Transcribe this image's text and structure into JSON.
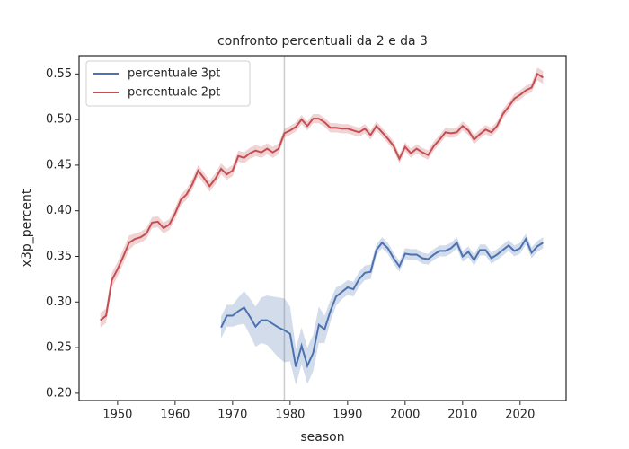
{
  "chart_data": {
    "type": "line",
    "title": "confronto percentuali da 2 e da 3",
    "xlabel": "season",
    "ylabel": "x3p_percent",
    "x": [
      1947,
      1948,
      1949,
      1950,
      1951,
      1952,
      1953,
      1954,
      1955,
      1956,
      1957,
      1958,
      1959,
      1960,
      1961,
      1962,
      1963,
      1964,
      1965,
      1966,
      1967,
      1968,
      1969,
      1970,
      1971,
      1972,
      1973,
      1974,
      1975,
      1976,
      1977,
      1978,
      1979,
      1980,
      1981,
      1982,
      1983,
      1984,
      1985,
      1986,
      1987,
      1988,
      1989,
      1990,
      1991,
      1992,
      1993,
      1994,
      1995,
      1996,
      1997,
      1998,
      1999,
      2000,
      2001,
      2002,
      2003,
      2004,
      2005,
      2006,
      2007,
      2008,
      2009,
      2010,
      2011,
      2012,
      2013,
      2014,
      2015,
      2016,
      2017,
      2018,
      2019,
      2020,
      2021,
      2022,
      2023,
      2024
    ],
    "series": [
      {
        "name": "percentuale 3pt",
        "color": "#4c72b0",
        "values": [
          null,
          null,
          null,
          null,
          null,
          null,
          null,
          null,
          null,
          null,
          null,
          null,
          null,
          null,
          null,
          null,
          null,
          null,
          null,
          null,
          null,
          0.272,
          0.285,
          0.285,
          0.29,
          0.294,
          0.284,
          0.273,
          0.28,
          0.28,
          0.276,
          0.272,
          0.269,
          0.265,
          0.229,
          0.252,
          0.23,
          0.244,
          0.275,
          0.27,
          0.29,
          0.306,
          0.311,
          0.316,
          0.314,
          0.325,
          0.332,
          0.333,
          0.357,
          0.365,
          0.359,
          0.348,
          0.339,
          0.353,
          0.352,
          0.352,
          0.348,
          0.347,
          0.352,
          0.356,
          0.356,
          0.359,
          0.365,
          0.35,
          0.355,
          0.346,
          0.357,
          0.357,
          0.348,
          0.352,
          0.357,
          0.362,
          0.356,
          0.359,
          0.369,
          0.354,
          0.361,
          0.365
        ],
        "ci": [
          null,
          null,
          null,
          null,
          null,
          null,
          null,
          null,
          null,
          null,
          null,
          null,
          null,
          null,
          null,
          null,
          null,
          null,
          null,
          null,
          null,
          0.012,
          0.012,
          0.012,
          0.015,
          0.018,
          0.02,
          0.022,
          0.025,
          0.027,
          0.03,
          0.033,
          0.035,
          0.03,
          0.02,
          0.02,
          0.02,
          0.02,
          0.02,
          0.015,
          0.012,
          0.01,
          0.008,
          0.008,
          0.008,
          0.008,
          0.008,
          0.008,
          0.006,
          0.006,
          0.006,
          0.006,
          0.006,
          0.006,
          0.006,
          0.006,
          0.006,
          0.006,
          0.006,
          0.006,
          0.006,
          0.006,
          0.006,
          0.006,
          0.006,
          0.006,
          0.006,
          0.006,
          0.006,
          0.006,
          0.006,
          0.006,
          0.006,
          0.006,
          0.006,
          0.006,
          0.006,
          0.006
        ]
      },
      {
        "name": "percentuale 2pt",
        "color": "#c44e52",
        "values": [
          0.28,
          0.285,
          0.324,
          0.336,
          0.35,
          0.365,
          0.369,
          0.371,
          0.375,
          0.387,
          0.388,
          0.381,
          0.385,
          0.397,
          0.412,
          0.418,
          0.429,
          0.444,
          0.436,
          0.427,
          0.435,
          0.446,
          0.44,
          0.444,
          0.46,
          0.458,
          0.463,
          0.466,
          0.464,
          0.468,
          0.464,
          0.468,
          0.485,
          0.488,
          0.492,
          0.5,
          0.493,
          0.501,
          0.501,
          0.497,
          0.491,
          0.491,
          0.49,
          0.49,
          0.488,
          0.486,
          0.49,
          0.483,
          0.493,
          0.486,
          0.479,
          0.471,
          0.457,
          0.47,
          0.463,
          0.468,
          0.464,
          0.461,
          0.471,
          0.478,
          0.486,
          0.485,
          0.486,
          0.493,
          0.488,
          0.478,
          0.484,
          0.489,
          0.486,
          0.493,
          0.506,
          0.514,
          0.523,
          0.527,
          0.532,
          0.535,
          0.55,
          0.546
        ],
        "ci": [
          0.008,
          0.008,
          0.008,
          0.008,
          0.008,
          0.008,
          0.006,
          0.006,
          0.006,
          0.006,
          0.006,
          0.006,
          0.006,
          0.006,
          0.006,
          0.006,
          0.006,
          0.006,
          0.006,
          0.006,
          0.006,
          0.006,
          0.006,
          0.006,
          0.006,
          0.006,
          0.006,
          0.006,
          0.006,
          0.006,
          0.006,
          0.006,
          0.005,
          0.005,
          0.005,
          0.005,
          0.005,
          0.005,
          0.005,
          0.005,
          0.005,
          0.005,
          0.005,
          0.005,
          0.005,
          0.005,
          0.005,
          0.005,
          0.005,
          0.005,
          0.005,
          0.005,
          0.005,
          0.005,
          0.005,
          0.005,
          0.005,
          0.005,
          0.005,
          0.005,
          0.005,
          0.005,
          0.005,
          0.005,
          0.005,
          0.005,
          0.005,
          0.005,
          0.005,
          0.005,
          0.005,
          0.005,
          0.005,
          0.005,
          0.005,
          0.005,
          0.007,
          0.007
        ]
      }
    ],
    "vline": 1979,
    "vline_color": "#cccccc",
    "xlim": [
      1943.3,
      2028
    ],
    "ylim": [
      0.192,
      0.57
    ],
    "xticks": [
      1950,
      1960,
      1970,
      1980,
      1990,
      2000,
      2010,
      2020
    ],
    "yticks": [
      {
        "value": 0.2,
        "label": "0.20"
      },
      {
        "value": 0.25,
        "label": "0.25"
      },
      {
        "value": 0.3,
        "label": "0.30"
      },
      {
        "value": 0.35,
        "label": "0.35"
      },
      {
        "value": 0.4,
        "label": "0.40"
      },
      {
        "value": 0.45,
        "label": "0.45"
      },
      {
        "value": 0.5,
        "label": "0.50"
      },
      {
        "value": 0.55,
        "label": "0.55"
      }
    ],
    "legend": "upper left",
    "grid": false
  }
}
